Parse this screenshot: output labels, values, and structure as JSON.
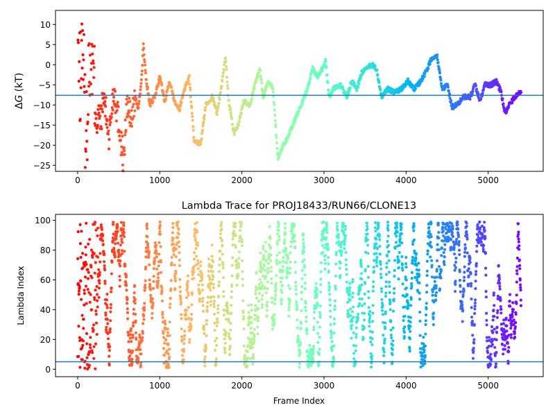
{
  "chart_data": [
    {
      "type": "scatter",
      "title": "",
      "xlabel": "",
      "ylabel": "ΔG (kT)",
      "ylabel_delta": "Δ",
      "ylabel_g": "G",
      "ylabel_rest": " (kT)",
      "xlim": [
        -270,
        5670
      ],
      "ylim": [
        -26.5,
        13.5
      ],
      "xticks": [
        0,
        1000,
        2000,
        3000,
        4000,
        5000
      ],
      "yticks": [
        -25,
        -20,
        -15,
        -10,
        -5,
        0,
        5,
        10
      ],
      "hline": -7.6,
      "hline_color": "#1f77b4",
      "colormap": "rainbow (red at frame 0 → violet at last frame)",
      "x_max": 5400,
      "trend": [
        [
          0,
          10
        ],
        [
          30,
          -5
        ],
        [
          60,
          8
        ],
        [
          100,
          -20
        ],
        [
          150,
          5
        ],
        [
          200,
          -5
        ],
        [
          240,
          -12
        ],
        [
          280,
          -14
        ],
        [
          320,
          -8
        ],
        [
          380,
          -18
        ],
        [
          440,
          -6
        ],
        [
          500,
          -14
        ],
        [
          560,
          -24
        ],
        [
          600,
          -10
        ],
        [
          660,
          -14
        ],
        [
          700,
          -8
        ],
        [
          740,
          -11
        ],
        [
          780,
          -3
        ],
        [
          800,
          5
        ],
        [
          830,
          -3
        ],
        [
          880,
          -10
        ],
        [
          940,
          -8
        ],
        [
          1000,
          -3
        ],
        [
          1060,
          -9
        ],
        [
          1120,
          -4
        ],
        [
          1180,
          -9
        ],
        [
          1240,
          -11
        ],
        [
          1300,
          -6
        ],
        [
          1360,
          -3
        ],
        [
          1420,
          -19.5
        ],
        [
          1500,
          -19.5
        ],
        [
          1560,
          -10
        ],
        [
          1640,
          -8
        ],
        [
          1700,
          -12
        ],
        [
          1760,
          -4
        ],
        [
          1800,
          2
        ],
        [
          1840,
          -9
        ],
        [
          1900,
          -17
        ],
        [
          1960,
          -15
        ],
        [
          2020,
          -9
        ],
        [
          2100,
          -10
        ],
        [
          2160,
          -5
        ],
        [
          2220,
          -1
        ],
        [
          2260,
          -8
        ],
        [
          2320,
          -4
        ],
        [
          2380,
          -6
        ],
        [
          2440,
          -23.5
        ],
        [
          2500,
          -20
        ],
        [
          2560,
          -18
        ],
        [
          2620,
          -15
        ],
        [
          2680,
          -12
        ],
        [
          2740,
          -9
        ],
        [
          2800,
          -6
        ],
        [
          2860,
          -1
        ],
        [
          2920,
          -3
        ],
        [
          2980,
          -1
        ],
        [
          3020,
          1
        ],
        [
          3060,
          -8
        ],
        [
          3120,
          -6
        ],
        [
          3200,
          -5
        ],
        [
          3280,
          -8
        ],
        [
          3340,
          -4
        ],
        [
          3400,
          -6
        ],
        [
          3460,
          -2
        ],
        [
          3520,
          -1
        ],
        [
          3580,
          0
        ],
        [
          3640,
          -1
        ],
        [
          3700,
          -8
        ],
        [
          3780,
          -6
        ],
        [
          3860,
          -7
        ],
        [
          3940,
          -6
        ],
        [
          4020,
          -4
        ],
        [
          4100,
          -6
        ],
        [
          4180,
          -4
        ],
        [
          4260,
          -1
        ],
        [
          4320,
          2
        ],
        [
          4380,
          2
        ],
        [
          4440,
          -6
        ],
        [
          4500,
          -5
        ],
        [
          4560,
          -10.5
        ],
        [
          4620,
          -10
        ],
        [
          4700,
          -8
        ],
        [
          4780,
          -8
        ],
        [
          4840,
          -5
        ],
        [
          4900,
          -9
        ],
        [
          4960,
          -5
        ],
        [
          5040,
          -5
        ],
        [
          5100,
          -4
        ],
        [
          5160,
          -7
        ],
        [
          5200,
          -12
        ],
        [
          5260,
          -10
        ],
        [
          5320,
          -8
        ],
        [
          5400,
          -6.5
        ]
      ]
    },
    {
      "type": "scatter",
      "title": "Lambda Trace for PROJ18433/RUN66/CLONE13",
      "xlabel": "Frame Index",
      "ylabel": "Lambda Index",
      "xlim": [
        -270,
        5670
      ],
      "ylim": [
        -5,
        104
      ],
      "xticks": [
        0,
        1000,
        2000,
        3000,
        4000,
        5000
      ],
      "yticks": [
        0,
        20,
        40,
        60,
        80,
        100
      ],
      "hline": 5,
      "hline_color": "#1f77b4",
      "colormap": "rainbow (red at frame 0 → violet at last frame)",
      "x_max": 5400,
      "y_min": 0,
      "y_max": 99
    }
  ]
}
